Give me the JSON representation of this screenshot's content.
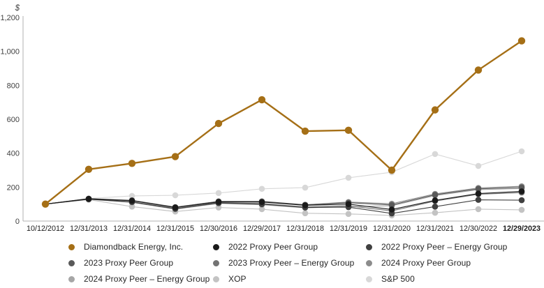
{
  "chart_data": {
    "type": "line",
    "ylabel": "$",
    "ylim": [
      0,
      1200
    ],
    "y_ticks": [
      {
        "value": 0,
        "label": "0"
      },
      {
        "value": 200,
        "label": "200"
      },
      {
        "value": 400,
        "label": "400"
      },
      {
        "value": 600,
        "label": "600"
      },
      {
        "value": 800,
        "label": "800"
      },
      {
        "value": 1000,
        "label": "1,000"
      },
      {
        "value": 1200,
        "label": "1,200"
      }
    ],
    "grid": false,
    "legend_position": "bottom",
    "axis_color": "#b0b0b0",
    "tick_label_color": "#404040",
    "x_label_color": "#1a1a1a",
    "bold_last_category": true,
    "categories": [
      "10/12/2012",
      "12/31/2013",
      "12/31/2014",
      "12/31/2015",
      "12/30/2016",
      "12/29/2017",
      "12/31/2018",
      "12/31/2019",
      "12/31/2020",
      "12/31/2021",
      "12/30/2022",
      "12/29/2023"
    ],
    "series": [
      {
        "name": "Diamondback Energy, Inc.",
        "color": "#a56f16",
        "emphasis": true,
        "values": [
          100,
          305,
          340,
          380,
          575,
          715,
          530,
          535,
          300,
          655,
          890,
          1062
        ]
      },
      {
        "name": "2022 Proxy Peer Group",
        "color": "#1a1a1a",
        "emphasis": false,
        "values": [
          100,
          131,
          120,
          80,
          113,
          112,
          93,
          100,
          68,
          122,
          162,
          175
        ]
      },
      {
        "name": "2022 Proxy Peer – Energy Group",
        "color": "#404040",
        "emphasis": false,
        "values": [
          100,
          129,
          112,
          72,
          106,
          100,
          80,
          82,
          45,
          85,
          125,
          123
        ]
      },
      {
        "name": "2023 Proxy Peer Group",
        "color": "#595959",
        "emphasis": false,
        "values": [
          100,
          132,
          122,
          82,
          116,
          116,
          96,
          108,
          95,
          155,
          190,
          198
        ]
      },
      {
        "name": "2023 Proxy Peer – Energy Group",
        "color": "#737373",
        "emphasis": false,
        "values": [
          100,
          129,
          113,
          74,
          108,
          103,
          83,
          90,
          60,
          118,
          158,
          168
        ]
      },
      {
        "name": "2024 Proxy Peer Group",
        "color": "#8c8c8c",
        "emphasis": false,
        "values": [
          100,
          131,
          121,
          81,
          115,
          114,
          95,
          112,
          102,
          160,
          195,
          205
        ]
      },
      {
        "name": "2024 Proxy Peer – Energy Group",
        "color": "#a6a6a6",
        "emphasis": false,
        "values": [
          100,
          128,
          110,
          70,
          104,
          96,
          78,
          85,
          90,
          150,
          185,
          192
        ]
      },
      {
        "name": "XOP",
        "color": "#c3c3c3",
        "emphasis": false,
        "values": [
          100,
          126,
          85,
          56,
          80,
          70,
          46,
          42,
          33,
          49,
          70,
          66
        ]
      },
      {
        "name": "S&P 500",
        "color": "#d8d8d8",
        "emphasis": false,
        "values": [
          100,
          133,
          148,
          152,
          165,
          190,
          197,
          255,
          288,
          395,
          325,
          411
        ]
      }
    ]
  }
}
